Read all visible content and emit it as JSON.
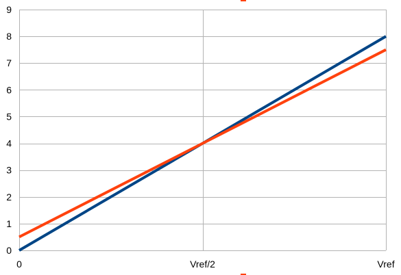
{
  "chart_data": {
    "type": "line",
    "title": "",
    "xlabel": "",
    "ylabel": "",
    "x_categories": [
      "0",
      "Vref/2",
      "Vref"
    ],
    "x": [
      0,
      0.5,
      1
    ],
    "xlim": [
      0,
      1
    ],
    "ylim": [
      0,
      9
    ],
    "y_ticks": [
      0,
      1,
      2,
      3,
      4,
      5,
      6,
      7,
      8,
      9
    ],
    "grid": true,
    "legend": "top",
    "series": [
      {
        "values": [
          0,
          4,
          8
        ],
        "color": "#004586"
      },
      {
        "values": [
          0.5,
          4,
          7.5
        ],
        "color": "#ff420e"
      }
    ]
  }
}
